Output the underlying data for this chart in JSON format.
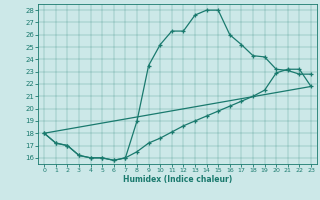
{
  "xlabel": "Humidex (Indice chaleur)",
  "ylabel": "",
  "bg_color": "#cce8e8",
  "line_color": "#1a7a6e",
  "xlim": [
    -0.5,
    23.5
  ],
  "ylim": [
    15.5,
    28.5
  ],
  "yticks": [
    16,
    17,
    18,
    19,
    20,
    21,
    22,
    23,
    24,
    25,
    26,
    27,
    28
  ],
  "xticks": [
    0,
    1,
    2,
    3,
    4,
    5,
    6,
    7,
    8,
    9,
    10,
    11,
    12,
    13,
    14,
    15,
    16,
    17,
    18,
    19,
    20,
    21,
    22,
    23
  ],
  "series1_x": [
    0,
    1,
    2,
    3,
    4,
    5,
    6,
    7,
    8,
    9,
    10,
    11,
    12,
    13,
    14,
    15,
    16,
    17,
    18,
    19,
    20,
    21,
    22,
    23
  ],
  "series1_y": [
    18,
    17.2,
    17.0,
    16.2,
    16.0,
    16.0,
    15.8,
    16.0,
    19.0,
    23.5,
    25.2,
    26.3,
    26.3,
    27.6,
    28.0,
    28.0,
    26.0,
    25.2,
    24.3,
    24.2,
    23.2,
    23.1,
    22.8,
    22.8
  ],
  "series2_x": [
    0,
    1,
    2,
    3,
    4,
    5,
    6,
    7,
    8,
    9,
    10,
    11,
    12,
    13,
    14,
    15,
    16,
    17,
    18,
    19,
    20,
    21,
    22,
    23
  ],
  "series2_y": [
    18,
    17.2,
    17.0,
    16.2,
    16.0,
    16.0,
    15.8,
    16.0,
    16.5,
    17.2,
    17.6,
    18.1,
    18.6,
    19.0,
    19.4,
    19.8,
    20.2,
    20.6,
    21.0,
    21.5,
    22.9,
    23.2,
    23.2,
    21.8
  ],
  "series3_x": [
    0,
    23
  ],
  "series3_y": [
    18,
    21.8
  ]
}
